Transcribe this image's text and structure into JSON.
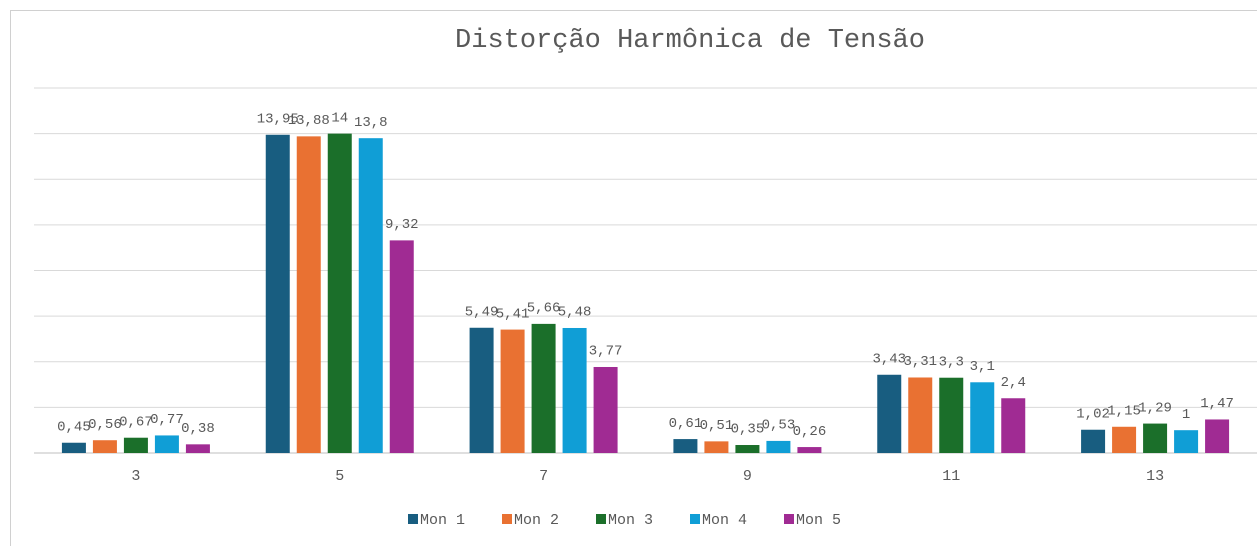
{
  "chart_data": {
    "type": "bar",
    "title": "Distorção Harmônica de Tensão",
    "categories": [
      "3",
      "5",
      "7",
      "9",
      "11",
      "13"
    ],
    "series": [
      {
        "name": "Mon 1",
        "color": "#185d80",
        "values": [
          0.45,
          13.95,
          5.49,
          0.61,
          3.43,
          1.02
        ],
        "value_labels": [
          "0,45",
          "13,95",
          "5,49",
          "0,61",
          "3,43",
          "1,02"
        ]
      },
      {
        "name": "Mon 2",
        "color": "#e97132",
        "values": [
          0.56,
          13.88,
          5.41,
          0.51,
          3.31,
          1.15
        ],
        "value_labels": [
          "0,56",
          "13,88",
          "5,41",
          "0,51",
          "3,31",
          "1,15"
        ]
      },
      {
        "name": "Mon 3",
        "color": "#1b6f2a",
        "values": [
          0.67,
          14,
          5.66,
          0.35,
          3.3,
          1.29
        ],
        "value_labels": [
          "0,67",
          "14",
          "5,66",
          "0,35",
          "3,3",
          "1,29"
        ]
      },
      {
        "name": "Mon 4",
        "color": "#109ed6",
        "values": [
          0.77,
          13.8,
          5.48,
          0.53,
          3.1,
          1
        ],
        "value_labels": [
          "0,77",
          "13,8",
          "5,48",
          "0,53",
          "3,1",
          "1"
        ]
      },
      {
        "name": "Mon 5",
        "color": "#a02b93",
        "values": [
          0.38,
          9.32,
          3.77,
          0.26,
          2.4,
          1.47
        ],
        "value_labels": [
          "0,38",
          "9,32",
          "3,77",
          "0,26",
          "2,4",
          "1,47"
        ]
      }
    ],
    "ylim": [
      0,
      16
    ],
    "yticks": [
      0,
      2,
      4,
      6,
      8,
      10,
      12,
      14,
      16
    ],
    "grid": true,
    "legend": "bottom"
  }
}
